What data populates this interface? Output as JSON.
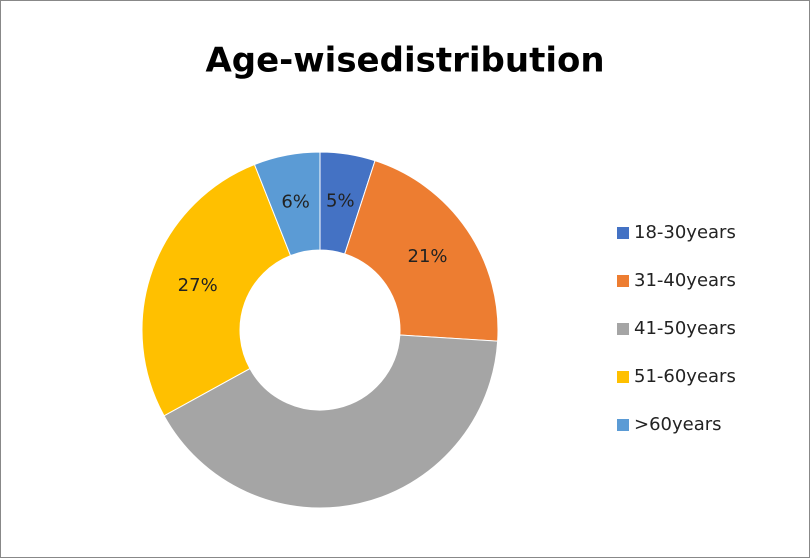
{
  "chart_data": {
    "type": "donut",
    "title": "Age-wisedistribution",
    "categories": [
      "18-30years",
      "31-40years",
      "41-50years",
      "51-60years",
      ">60years"
    ],
    "values": [
      5,
      21,
      41,
      27,
      6
    ],
    "value_labels": [
      "5%",
      "21%",
      null,
      "27%",
      "6%"
    ],
    "colors": [
      "#4472c4",
      "#ed7d31",
      "#a5a5a5",
      "#ffc000",
      "#5b9bd5"
    ],
    "legend": "right"
  }
}
